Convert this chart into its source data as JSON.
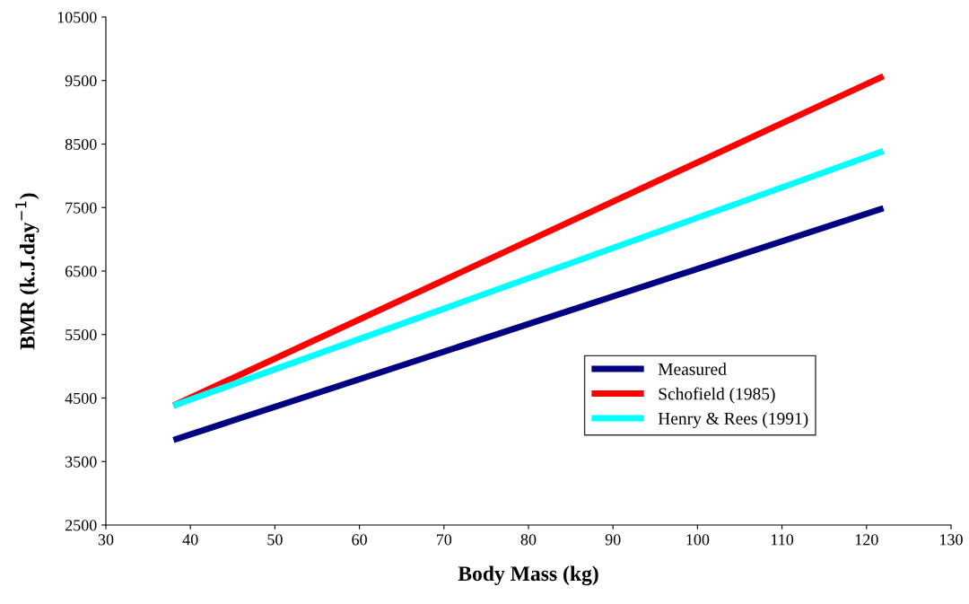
{
  "chart_data": {
    "type": "line",
    "xlabel": "Body Mass (kg)",
    "ylabel": "BMR (k.J.day$^{−1}$)",
    "x": [
      38,
      122
    ],
    "series": [
      {
        "name": "Measured",
        "color": "#000080",
        "values": [
          3840,
          7490
        ]
      },
      {
        "name": "Schofield (1985)",
        "color": "#ff0000",
        "values": [
          4380,
          9570
        ]
      },
      {
        "name": "Henry & Rees (1991)",
        "color": "#00ffff",
        "values": [
          4380,
          8390
        ]
      }
    ],
    "xlim": [
      30,
      130
    ],
    "xticks": [
      30,
      40,
      50,
      60,
      70,
      80,
      90,
      100,
      110,
      120,
      130
    ],
    "ylim": [
      2500,
      10500
    ],
    "yticks": [
      2500,
      3500,
      4500,
      5500,
      6500,
      7500,
      8500,
      9500,
      10500
    ],
    "grid": false,
    "legend": "bottom right",
    "marker": "none",
    "line_style": "solid"
  }
}
